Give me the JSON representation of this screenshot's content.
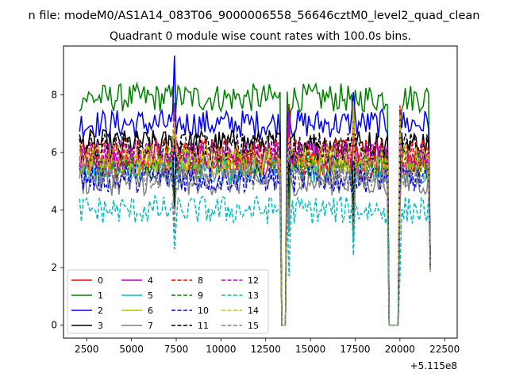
{
  "chart_data": {
    "type": "line",
    "suptitle": "n file: modeM0/AS1A14_083T06_9000006558_56646cztM0_level2_quad_clean",
    "title": "Quadrant 0 module wise count rates with 100.0s bins.",
    "xlabel": "",
    "ylabel": "",
    "x_offset_label": "+5.115e8",
    "xlim": [
      1200,
      23200
    ],
    "ylim": [
      -0.45,
      9.7
    ],
    "x_ticks": [
      2500,
      5000,
      7500,
      10000,
      12500,
      15000,
      17500,
      20000,
      22500
    ],
    "x_tick_labels": [
      "2500",
      "5000",
      "7500",
      "10000",
      "12500",
      "15000",
      "17500",
      "20000",
      "22500"
    ],
    "y_ticks": [
      0,
      2,
      4,
      6,
      8
    ],
    "y_tick_labels": [
      "0",
      "2",
      "4",
      "6",
      "8"
    ],
    "x_start": 2100,
    "x_step": 100,
    "x_end": 21700,
    "gaps": [
      [
        13350,
        13650
      ],
      [
        19400,
        19950
      ]
    ],
    "spikes": [
      7400,
      13800,
      17400,
      20000
    ],
    "legend_position": "lower-left",
    "series": [
      {
        "name": "0",
        "color": "#ff0000",
        "dash": "solid",
        "mean": 5.5
      },
      {
        "name": "1",
        "color": "#008000",
        "dash": "solid",
        "mean": 7.9
      },
      {
        "name": "2",
        "color": "#0000ff",
        "dash": "solid",
        "mean": 7.0
      },
      {
        "name": "3",
        "color": "#000000",
        "dash": "solid",
        "mean": 6.3
      },
      {
        "name": "4",
        "color": "#bf00bf",
        "dash": "solid",
        "mean": 5.8
      },
      {
        "name": "5",
        "color": "#00bfbf",
        "dash": "solid",
        "mean": 5.4
      },
      {
        "name": "6",
        "color": "#bfbf00",
        "dash": "solid",
        "mean": 5.7
      },
      {
        "name": "7",
        "color": "#808080",
        "dash": "solid",
        "mean": 5.0
      },
      {
        "name": "8",
        "color": "#ff0000",
        "dash": "dashed",
        "mean": 6.0
      },
      {
        "name": "9",
        "color": "#008000",
        "dash": "dashed",
        "mean": 5.6
      },
      {
        "name": "10",
        "color": "#0000ff",
        "dash": "dashed",
        "mean": 5.1
      },
      {
        "name": "11",
        "color": "#000000",
        "dash": "dashed",
        "mean": 6.2
      },
      {
        "name": "12",
        "color": "#bf00bf",
        "dash": "dashed",
        "mean": 5.9
      },
      {
        "name": "13",
        "color": "#00bfbf",
        "dash": "dashed",
        "mean": 4.0
      },
      {
        "name": "14",
        "color": "#bfbf00",
        "dash": "dashed",
        "mean": 5.8
      },
      {
        "name": "15",
        "color": "#808080",
        "dash": "dashed",
        "mean": 5.2
      }
    ]
  }
}
